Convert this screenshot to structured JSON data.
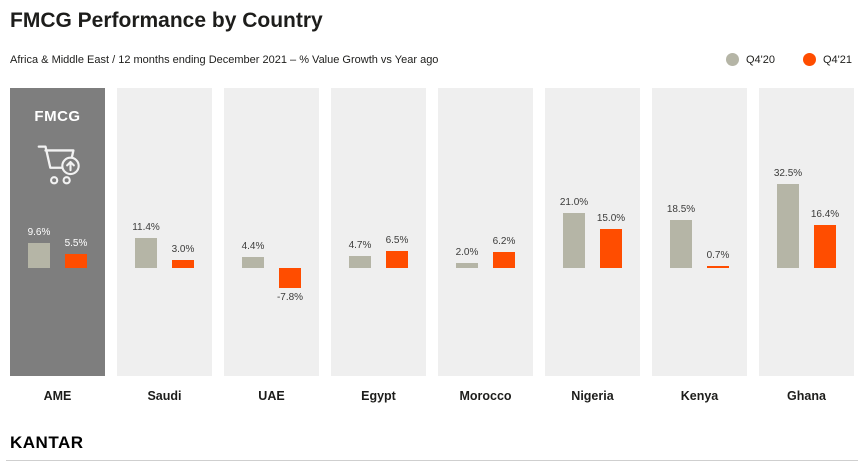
{
  "header": {
    "title": "FMCG Performance by Country",
    "subtitle": "Africa & Middle East / 12 months ending December 2021 – % Value Growth vs Year ago"
  },
  "legend": [
    {
      "label": "Q4'20",
      "color": "#b5b5a6"
    },
    {
      "label": "Q4'21",
      "color": "#ff4d00"
    }
  ],
  "chart_data": {
    "type": "bar",
    "title": "FMCG Performance by Country",
    "subtitle": "Africa & Middle East / 12 months ending December 2021 – % Value Growth vs Year ago",
    "ylabel": "% Value Growth vs Year ago",
    "categories": [
      "AME",
      "Saudi",
      "UAE",
      "Egypt",
      "Morocco",
      "Nigeria",
      "Kenya",
      "Ghana"
    ],
    "series": [
      {
        "name": "Q4'20",
        "color": "#b5b5a6",
        "values": [
          9.6,
          11.4,
          4.4,
          4.7,
          2.0,
          21.0,
          18.5,
          32.5
        ]
      },
      {
        "name": "Q4'21",
        "color": "#ff4d00",
        "values": [
          5.5,
          3.0,
          -7.8,
          6.5,
          6.2,
          15.0,
          0.7,
          16.4
        ]
      }
    ],
    "highlight_panel": "AME",
    "highlight_panel_label": "FMCG",
    "highlight_panel_icon": "shopping-cart-growth-icon",
    "legend_position": "top-right",
    "grid": false,
    "value_suffix": "%"
  },
  "footer": {
    "logo": "KANTAR"
  },
  "colors": {
    "q4_20": "#b5b5a6",
    "q4_21": "#ff4d00",
    "highlight_panel_bg": "#7e7e7e",
    "panel_bg": "#efefef"
  }
}
